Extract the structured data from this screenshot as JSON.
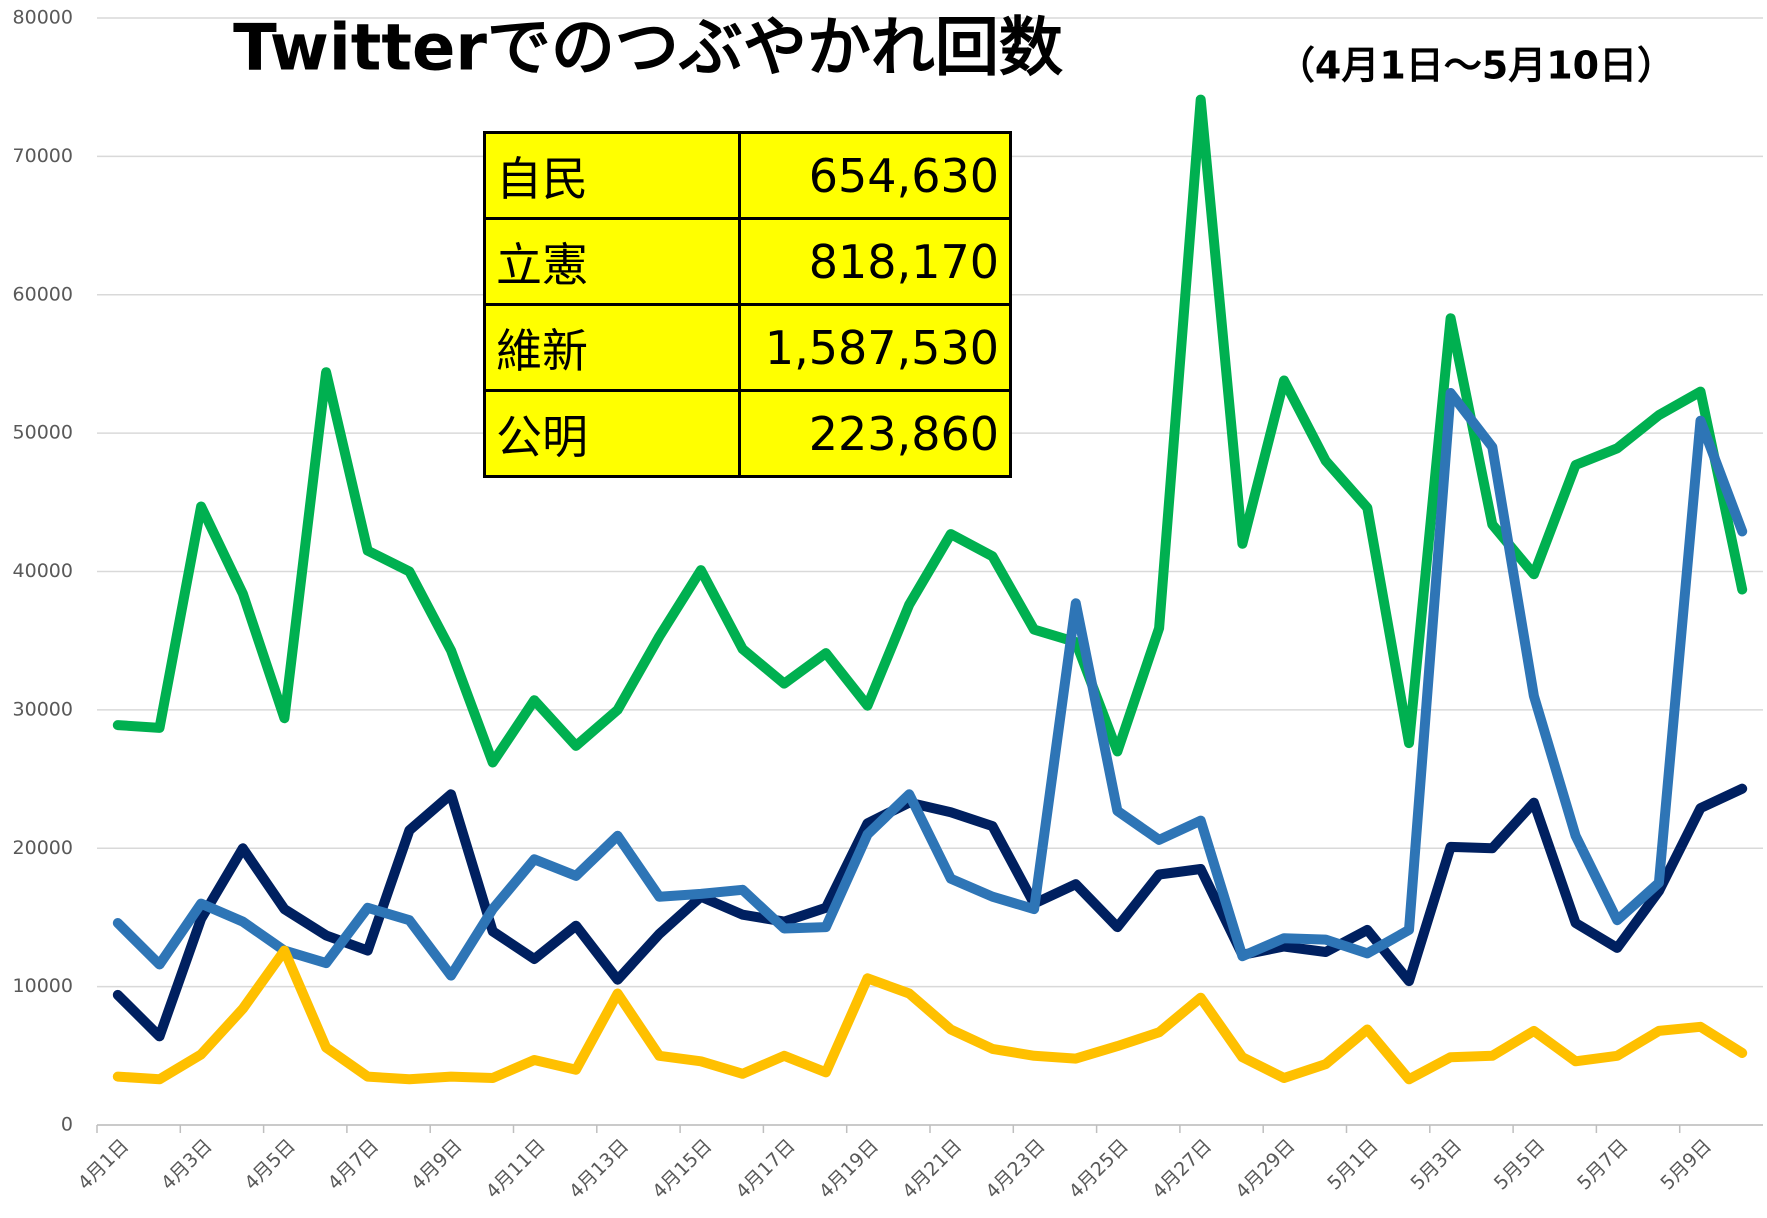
{
  "chart_data": {
    "type": "line",
    "title": "Twitterでのつぶやかれ回数",
    "subtitle": "（4月1日～5月10日）",
    "categories": [
      "4月1日",
      null,
      "4月3日",
      null,
      "4月5日",
      null,
      "4月7日",
      null,
      "4月9日",
      null,
      "4月11日",
      null,
      "4月13日",
      null,
      "4月15日",
      null,
      "4月17日",
      null,
      "4月19日",
      null,
      "4月21日",
      null,
      "4月23日",
      null,
      "4月25日",
      null,
      "4月27日",
      null,
      "4月29日",
      null,
      "5月1日",
      null,
      "5月3日",
      null,
      "5月5日",
      null,
      "5月7日",
      null,
      "5月9日",
      null
    ],
    "ylim": [
      0,
      80000
    ],
    "yticks": [
      0,
      10000,
      20000,
      30000,
      40000,
      50000,
      60000,
      70000,
      80000
    ],
    "grid": true,
    "series": [
      {
        "color": "#00b050",
        "values": [
          28900,
          28700,
          44700,
          38400,
          29400,
          54400,
          41500,
          40000,
          34300,
          26200,
          30700,
          27400,
          30000,
          35300,
          40100,
          34400,
          31900,
          34100,
          30300,
          37600,
          42700,
          41100,
          35800,
          34900,
          27000,
          35900,
          74100,
          42000,
          53800,
          48000,
          44600,
          27600,
          58300,
          43400,
          39800,
          47700,
          48900,
          51300,
          53000,
          38700
        ]
      },
      {
        "color": "#002060",
        "values": [
          9400,
          6400,
          14900,
          20000,
          15600,
          13700,
          12600,
          21300,
          23900,
          14000,
          12000,
          14400,
          10500,
          13800,
          16500,
          15200,
          14700,
          15700,
          21800,
          23300,
          22600,
          21600,
          16000,
          17400,
          14300,
          18100,
          18500,
          12300,
          12900,
          12500,
          14100,
          10400,
          20100,
          20000,
          23300,
          14600,
          12800,
          16900,
          22900,
          24300
        ]
      },
      {
        "color": "#2e75b6",
        "values": [
          14600,
          11600,
          16000,
          14700,
          12600,
          11700,
          15700,
          14800,
          10800,
          15600,
          19200,
          18000,
          20900,
          16500,
          16700,
          17000,
          14200,
          14300,
          21000,
          23900,
          17800,
          16500,
          15600,
          37700,
          22700,
          20600,
          22000,
          12200,
          13500,
          13400,
          12400,
          14100,
          52900,
          49000,
          31000,
          20900,
          14800,
          17500,
          50900,
          42900
        ]
      },
      {
        "color": "#ffc000",
        "values": [
          3500,
          3300,
          5100,
          8400,
          12600,
          5600,
          3500,
          3300,
          3500,
          3400,
          4700,
          4000,
          9500,
          5000,
          4600,
          3700,
          5000,
          3800,
          10600,
          9500,
          6900,
          5500,
          5000,
          4800,
          5700,
          6700,
          9200,
          4900,
          3400,
          4400,
          6900,
          3300,
          4900,
          5000,
          6800,
          4600,
          5000,
          6800,
          7100,
          5200
        ]
      }
    ]
  },
  "table": {
    "rows": [
      [
        "自民",
        "654,630"
      ],
      [
        "立憲",
        "818,170"
      ],
      [
        "維新",
        "1,587,530"
      ],
      [
        "公明",
        "223,860"
      ]
    ]
  }
}
